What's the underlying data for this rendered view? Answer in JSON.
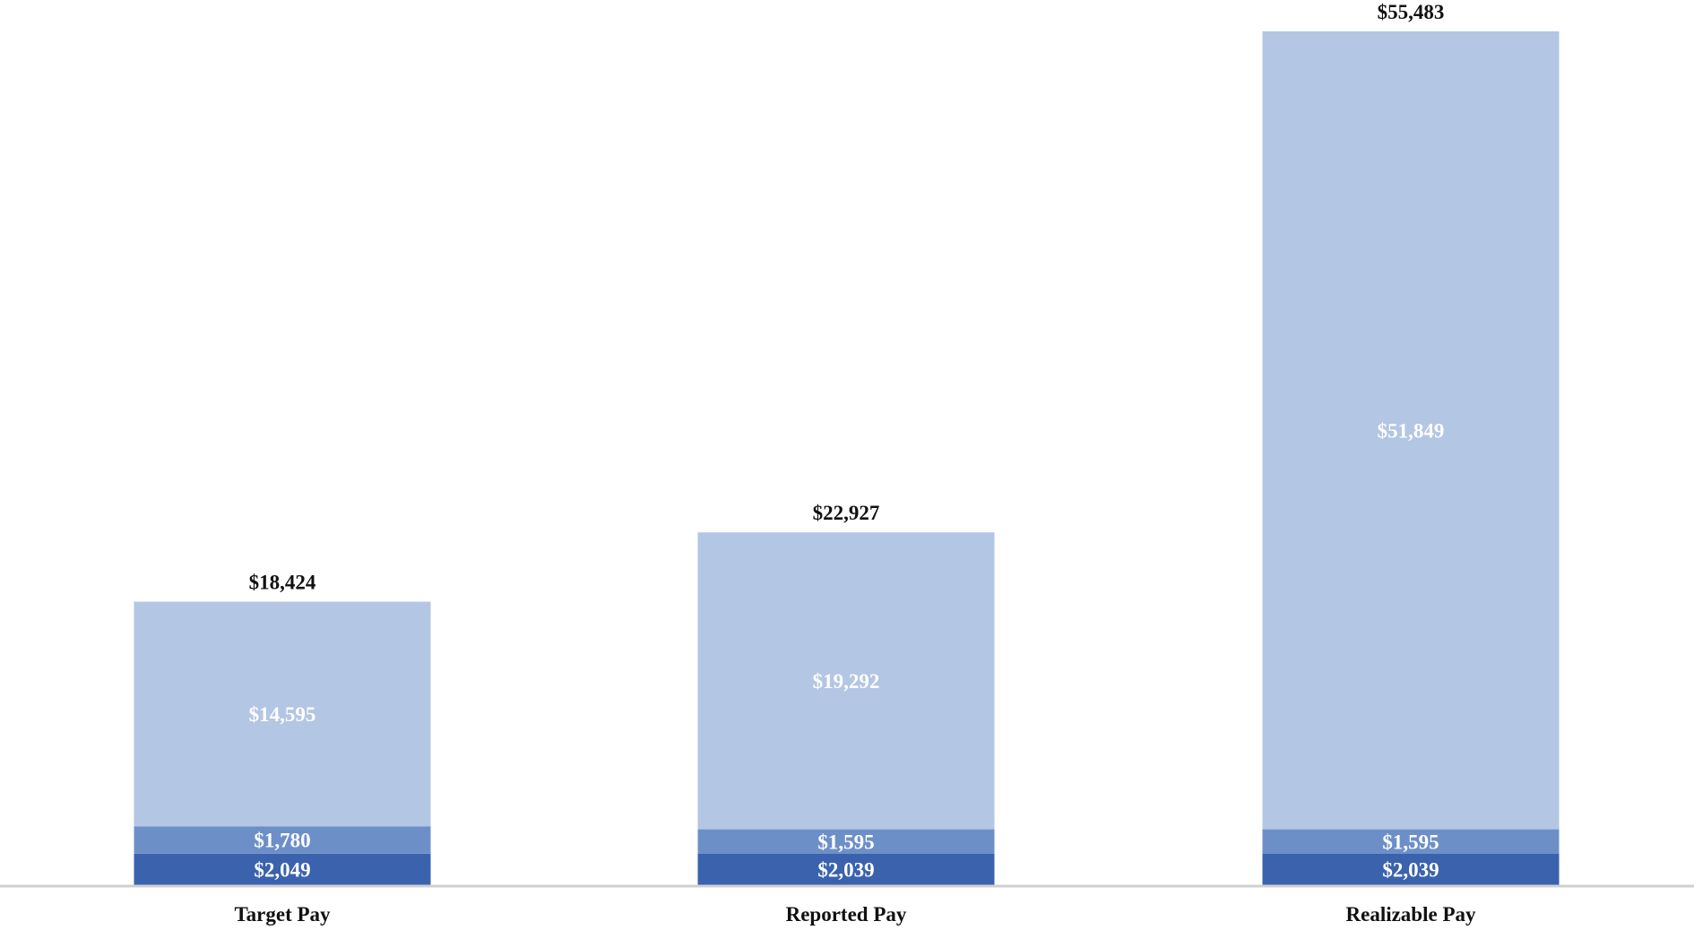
{
  "chart_data": {
    "type": "bar",
    "stacked": true,
    "title": "",
    "xlabel": "",
    "ylabel": "",
    "ylim": [
      0,
      55483
    ],
    "grid": false,
    "legend": "none",
    "categories": [
      "Target Pay",
      "Reported Pay",
      "Realizable Pay"
    ],
    "series": [
      {
        "values": [
          2049,
          2039,
          2039
        ],
        "labels": [
          "$2,049",
          "$2,039",
          "$2,039"
        ],
        "color": "#3a62ad"
      },
      {
        "values": [
          1780,
          1595,
          1595
        ],
        "labels": [
          "$1,780",
          "$1,595",
          "$1,595"
        ],
        "color": "#6d8fc8"
      },
      {
        "values": [
          14595,
          19292,
          51849
        ],
        "labels": [
          "$14,595",
          "$19,292",
          "$51,849"
        ],
        "color": "#b3c6e3"
      }
    ],
    "totals": [
      18424,
      22927,
      55483
    ],
    "total_labels": [
      "$18,424",
      "$22,927",
      "$55,483"
    ],
    "axis_color": "#d0d0d0"
  }
}
